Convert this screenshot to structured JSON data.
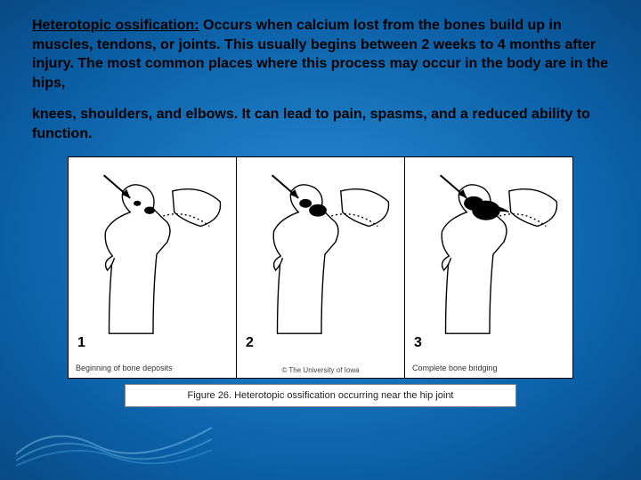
{
  "text": {
    "term": "Heterotopic ossification:",
    "para1_rest": " Occurs when calcium lost from the bones build up in muscles, tendons, or joints. This usually begins between 2 weeks to 4 months after injury. The most common places where this process may occur in the body are in the hips,",
    "para2": "knees, shoulders, and elbows.  It can lead to pain, spasms, and a reduced ability to function."
  },
  "figure": {
    "panels": [
      {
        "num": "1",
        "caption": "Beginning of bone deposits",
        "blob_scale": 0.6
      },
      {
        "num": "2",
        "caption": "",
        "blob_scale": 1.0
      },
      {
        "num": "3",
        "caption": "Complete bone bridging",
        "blob_scale": 1.6
      }
    ],
    "copyright": "© The University of Iowa",
    "caption": "Figure 26.  Heterotopic ossification occurring near the hip joint"
  },
  "colors": {
    "text": "#000000",
    "panel_border": "#000000",
    "bone_stroke": "#000000",
    "bone_fill": "#ffffff",
    "deposit_fill": "#000000",
    "bg_inner": "#2a8fd8",
    "bg_outer": "#074a85"
  },
  "style": {
    "panel_stroke_width": 1.4,
    "arrow_size": 14,
    "dotted_dash": "2 3"
  }
}
